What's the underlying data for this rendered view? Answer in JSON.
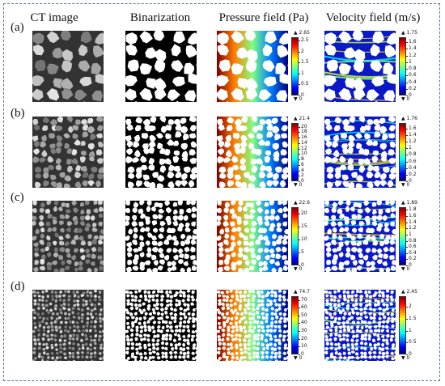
{
  "columns": [
    "CT image",
    "Binarization",
    "Pressure field (Pa)",
    "Velocity field (m/s)"
  ],
  "rows": [
    {
      "label": "(a)",
      "grain_scale": 1.0,
      "pressure": {
        "max_label": "▲ 2.65",
        "min_label": "▼ 0",
        "ticks": [
          "2.5",
          "2",
          "1.5",
          "1",
          "0.5",
          "0"
        ],
        "tick_values": [
          2.5,
          2,
          1.5,
          1,
          0.5,
          0
        ],
        "max": 2.65
      },
      "velocity": {
        "max_label": "▲ 1.75",
        "min_label": "▼ 0",
        "ticks": [
          "1.6",
          "1.4",
          "1.2",
          "1",
          "0.8",
          "0.6",
          "0.4",
          "0.2",
          "0"
        ],
        "tick_values": [
          1.6,
          1.4,
          1.2,
          1,
          0.8,
          0.6,
          0.4,
          0.2,
          0
        ],
        "max": 1.75
      }
    },
    {
      "label": "(b)",
      "grain_scale": 0.55,
      "pressure": {
        "max_label": "▲ 21.4",
        "min_label": "▼ 0",
        "ticks": [
          "20",
          "18",
          "16",
          "14",
          "12",
          "10",
          "8",
          "6",
          "4",
          "2",
          "0"
        ],
        "tick_values": [
          20,
          18,
          16,
          14,
          12,
          10,
          8,
          6,
          4,
          2,
          0
        ],
        "max": 21.4
      },
      "velocity": {
        "max_label": "▲ 1.76",
        "min_label": "▼ 0",
        "ticks": [
          "1.6",
          "1.4",
          "1.2",
          "1",
          "0.8",
          "0.6",
          "0.4",
          "0.2",
          "0"
        ],
        "tick_values": [
          1.6,
          1.4,
          1.2,
          1,
          0.8,
          0.6,
          0.4,
          0.2,
          0
        ],
        "max": 1.76
      }
    },
    {
      "label": "(c)",
      "grain_scale": 0.45,
      "pressure": {
        "max_label": "▲ 22.6",
        "min_label": "▼ 0",
        "ticks": [
          "20",
          "15",
          "10",
          "5",
          "0"
        ],
        "tick_values": [
          20,
          15,
          10,
          5,
          0
        ],
        "max": 22.6
      },
      "velocity": {
        "max_label": "▲ 1.89",
        "min_label": "▼ 0",
        "ticks": [
          "1.8",
          "1.6",
          "1.4",
          "1.2",
          "1",
          "0.8",
          "0.6",
          "0.4",
          "0.2",
          "0"
        ],
        "tick_values": [
          1.8,
          1.6,
          1.4,
          1.2,
          1,
          0.8,
          0.6,
          0.4,
          0.2,
          0
        ],
        "max": 1.89
      }
    },
    {
      "label": "(d)",
      "grain_scale": 0.3,
      "pressure": {
        "max_label": "▲ 74.7",
        "min_label": "▼ 0",
        "ticks": [
          "70",
          "60",
          "50",
          "40",
          "30",
          "20",
          "10",
          "0"
        ],
        "tick_values": [
          70,
          60,
          50,
          40,
          30,
          20,
          10,
          0
        ],
        "max": 74.7
      },
      "velocity": {
        "max_label": "▲ 2.45",
        "min_label": "▼ 0",
        "ticks": [
          "2",
          "1.5",
          "1",
          "0.5",
          "0"
        ],
        "tick_values": [
          2,
          1.5,
          1,
          0.5,
          0
        ],
        "max": 2.45
      }
    }
  ]
}
